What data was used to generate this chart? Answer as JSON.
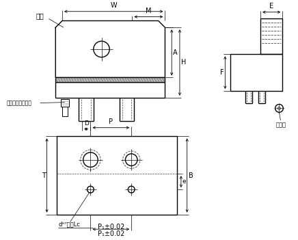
{
  "bg_color": "#ffffff",
  "line_color": "#000000",
  "gray_color": "#999999",
  "dash_color": "#444444",
  "labels": {
    "zhuti": "主体",
    "bolt": "内六角圆柱头螺栓",
    "dingwei": "定位销",
    "W": "W",
    "M": "M",
    "H": "H",
    "A": "A",
    "D": "D",
    "P": "P",
    "T": "T",
    "B": "B",
    "e": "e",
    "P1": "P₁±0.02",
    "dH7": "dᴴ⁷深度Lc",
    "E": "E",
    "F": "F"
  }
}
